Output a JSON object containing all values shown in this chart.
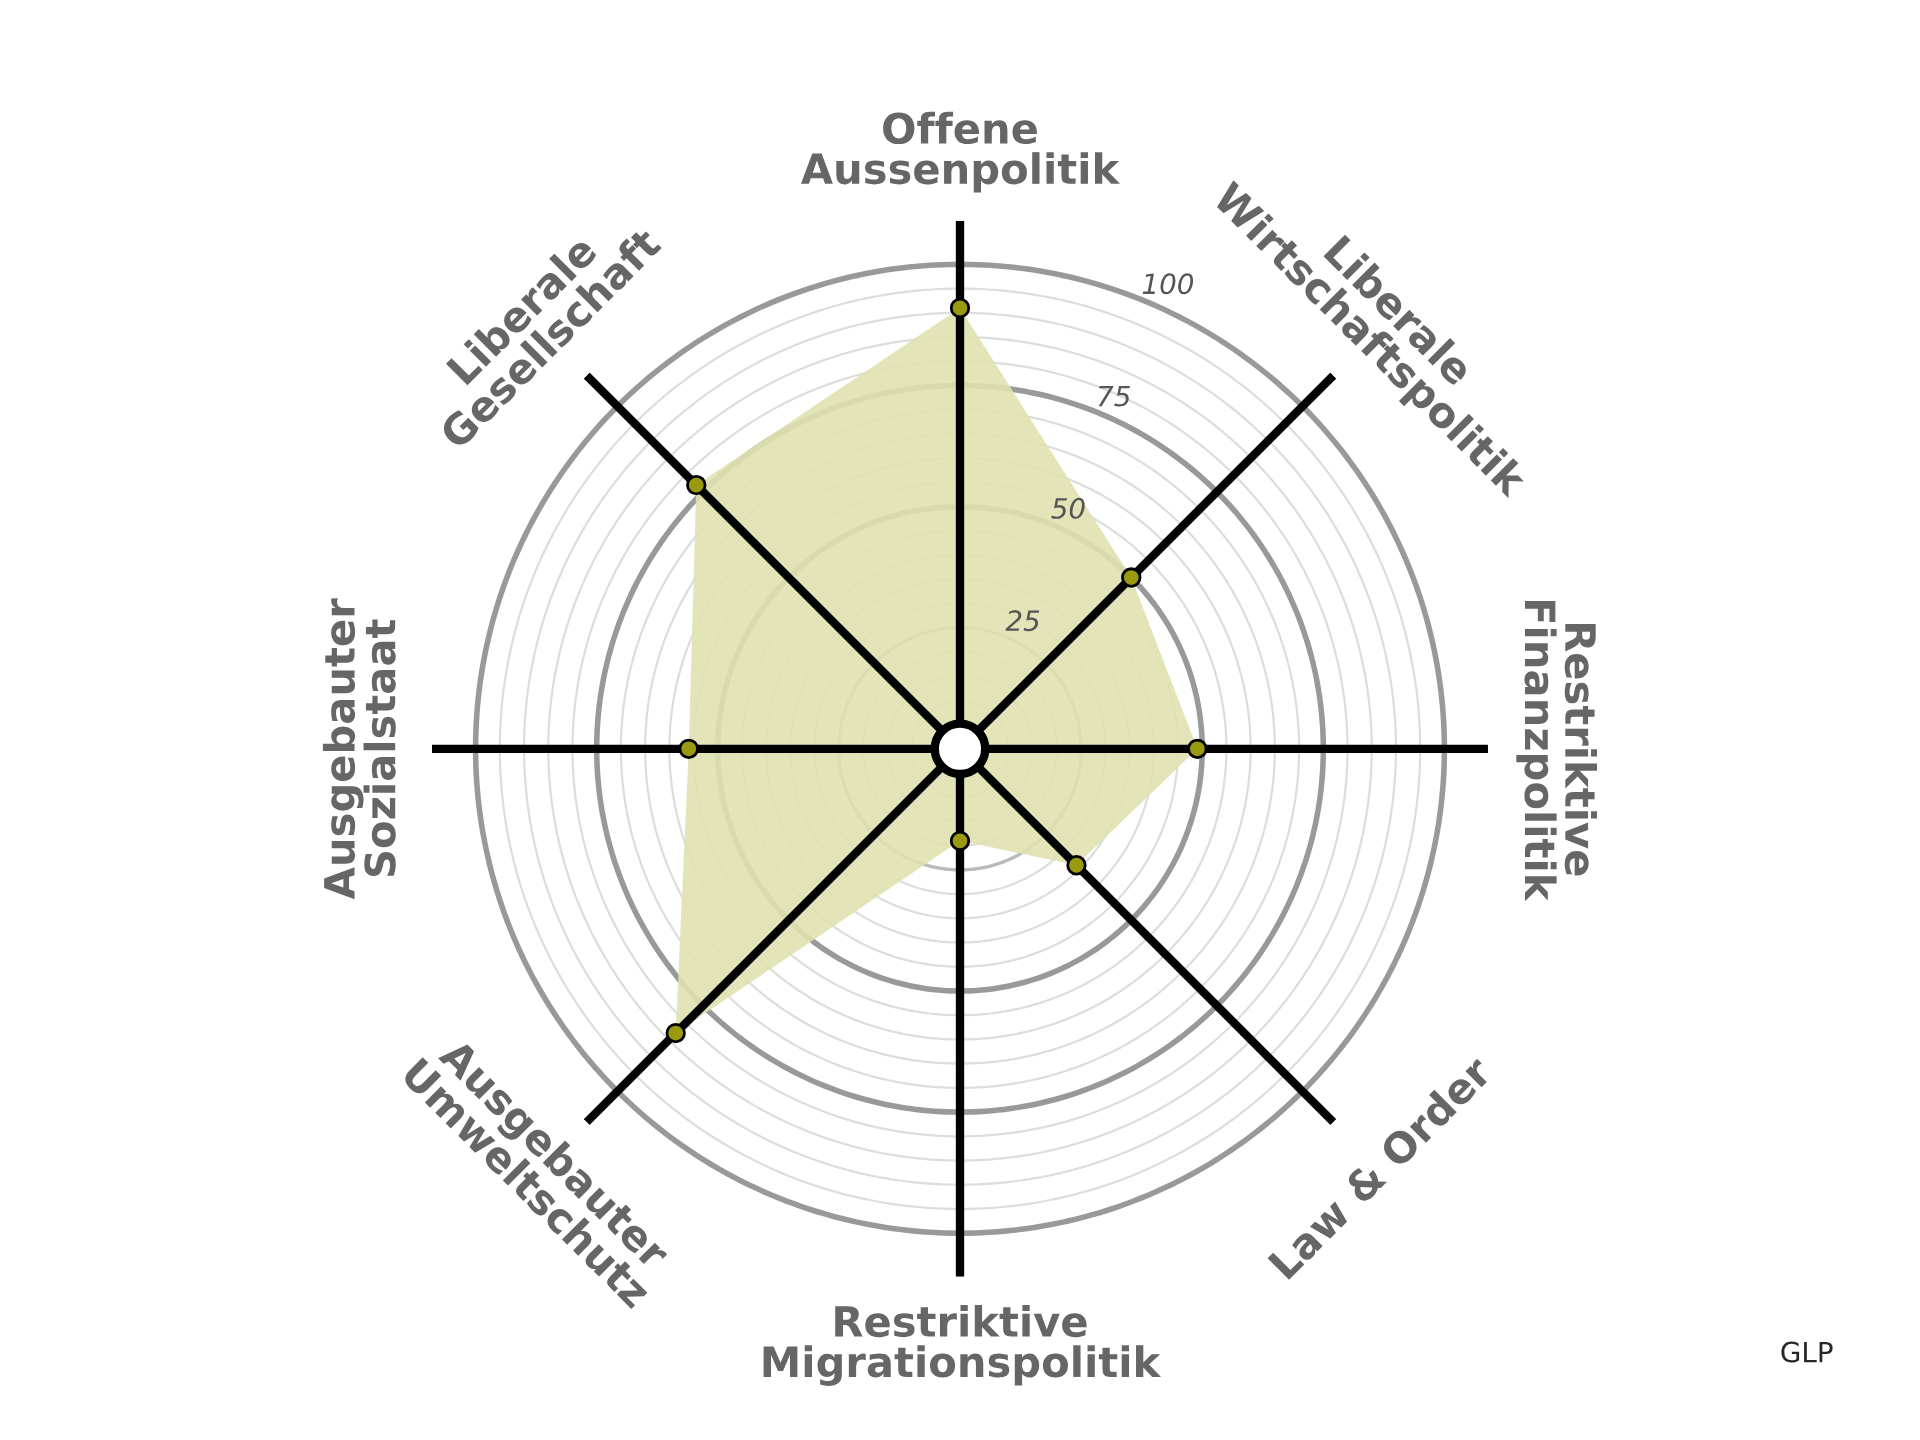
{
  "chart_data": {
    "type": "radar",
    "categories": [
      "Offene\nAussenpolitik",
      "Liberale\nWirtschaftspolitik",
      "Restriktive\nFinanzpolitik",
      "Law & Order",
      "Restriktive\nMigrationspolitik",
      "Ausgebauter\nUmweltschutz",
      "Ausgebauter\nSozialstaat",
      "Liberale\nGesellschaft"
    ],
    "series": [
      {
        "color": "#e0e2b0",
        "values": [
          91,
          50,
          49,
          34,
          19,
          83,
          56,
          77
        ]
      }
    ],
    "ylim": [
      0,
      109
    ],
    "yticks": [
      25,
      50,
      75,
      100
    ],
    "grid": true,
    "marker": "circle",
    "annotations": [
      "GLP"
    ]
  }
}
